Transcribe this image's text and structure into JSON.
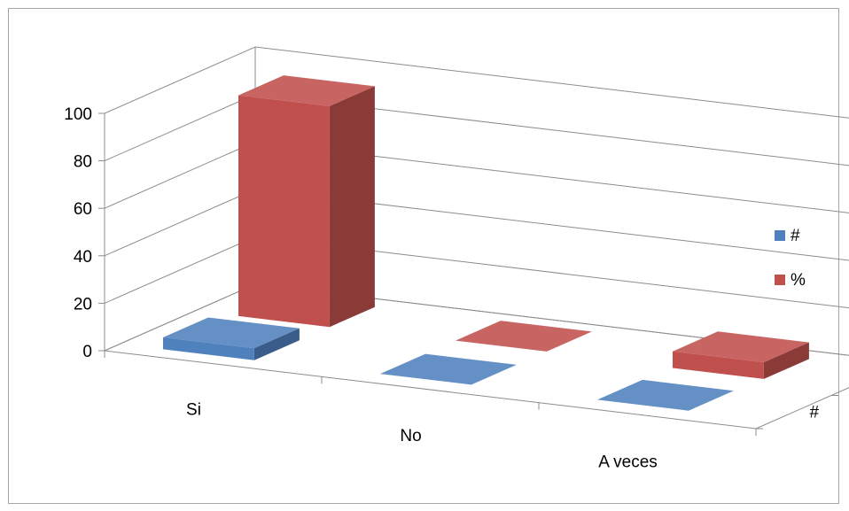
{
  "chart_data": {
    "type": "bar",
    "subtype": "3d-column",
    "categories": [
      "Si",
      "No",
      "A veces"
    ],
    "series": [
      {
        "name": "#",
        "values": [
          5,
          0,
          0
        ],
        "color": "#4f81bd"
      },
      {
        "name": "%",
        "values": [
          93,
          0,
          7
        ],
        "color": "#c0504d"
      }
    ],
    "depth_labels": [
      "#",
      "%"
    ],
    "ylim": [
      0,
      100
    ],
    "yticks": [
      "0",
      "20",
      "40",
      "60",
      "80",
      "100"
    ],
    "grid": true,
    "legend_position": "right"
  }
}
